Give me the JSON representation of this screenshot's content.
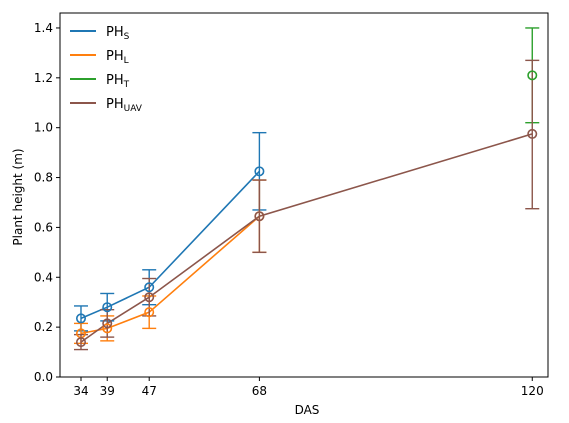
{
  "chart_data": {
    "type": "line",
    "xlabel": "DAS",
    "ylabel": "Plant height (m)",
    "x_ticks": [
      34,
      39,
      47,
      68,
      120
    ],
    "x_tick_labels": [
      "34",
      "39",
      "47",
      "68",
      "120"
    ],
    "y_ticks": [
      0.0,
      0.2,
      0.4,
      0.6,
      0.8,
      1.0,
      1.2,
      1.4
    ],
    "y_tick_labels": [
      "0.0",
      "0.2",
      "0.4",
      "0.6",
      "0.8",
      "1.0",
      "1.2",
      "1.4"
    ],
    "xlim": [
      30,
      123
    ],
    "ylim": [
      0.0,
      1.46
    ],
    "grid": false,
    "legend_position": "top-left",
    "series": [
      {
        "id": "phs",
        "name_main": "PH",
        "name_sub": "S",
        "color": "#1f77b4",
        "x": [
          34,
          39,
          47,
          68
        ],
        "y": [
          0.235,
          0.28,
          0.36,
          0.825
        ],
        "err_low": [
          0.185,
          0.225,
          0.29,
          0.67
        ],
        "err_high": [
          0.285,
          0.335,
          0.43,
          0.98
        ]
      },
      {
        "id": "phl",
        "name_main": "PH",
        "name_sub": "L",
        "color": "#ff7f0e",
        "x": [
          34,
          39,
          47,
          68
        ],
        "y": [
          0.175,
          0.195,
          0.26,
          0.645
        ],
        "err_low": [
          0.135,
          0.145,
          0.195,
          0.5
        ],
        "err_high": [
          0.215,
          0.245,
          0.325,
          0.79
        ]
      },
      {
        "id": "pht",
        "name_main": "PH",
        "name_sub": "T",
        "color": "#2ca02c",
        "x": [
          120
        ],
        "y": [
          1.21
        ],
        "err_low": [
          1.02
        ],
        "err_high": [
          1.4
        ]
      },
      {
        "id": "phuav",
        "name_main": "PH",
        "name_sub": "UAV",
        "color": "#8c564b",
        "x": [
          34,
          39,
          47,
          68,
          120
        ],
        "y": [
          0.14,
          0.215,
          0.32,
          0.645,
          0.975
        ],
        "err_low": [
          0.11,
          0.16,
          0.245,
          0.5,
          0.675
        ],
        "err_high": [
          0.17,
          0.27,
          0.395,
          0.79,
          1.27
        ]
      }
    ]
  }
}
